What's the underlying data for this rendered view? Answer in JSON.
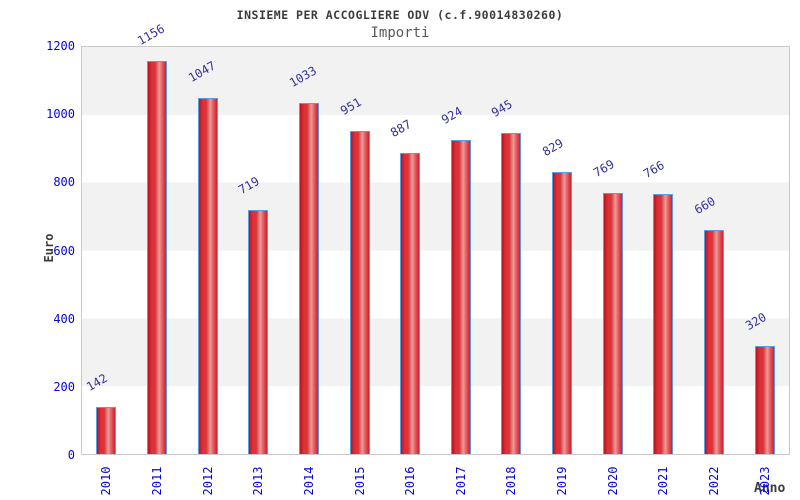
{
  "chart_data": {
    "type": "bar",
    "title": "INSIEME PER ACCOGLIERE ODV (c.f.90014830260)",
    "subtitle": "Importi",
    "xlabel": "Anno",
    "ylabel": "Euro",
    "categories": [
      "2010",
      "2011",
      "2012",
      "2013",
      "2014",
      "2015",
      "2016",
      "2017",
      "2018",
      "2019",
      "2020",
      "2021",
      "2022",
      "2023"
    ],
    "values": [
      142,
      1156,
      1047,
      719,
      1033,
      951,
      887,
      924,
      945,
      829,
      769,
      766,
      660,
      320
    ],
    "ylim": [
      0,
      1200
    ],
    "ytick_step": 200,
    "yticks": [
      0,
      200,
      400,
      600,
      800,
      1000,
      1200
    ],
    "legend": "none",
    "grid": "alternating-horizontal-bands",
    "colors": {
      "bar_fill_edge": "#cc1a26",
      "bar_fill_highlight": "#ee9a9a",
      "bar_border": "#5b9de2",
      "tick_label": "#0606dd",
      "value_label": "#333399",
      "band_gray": "#f2f2f2",
      "band_white": "#ffffff",
      "plot_border": "#c9c9c9",
      "title_text": "#3c3c3c"
    }
  }
}
